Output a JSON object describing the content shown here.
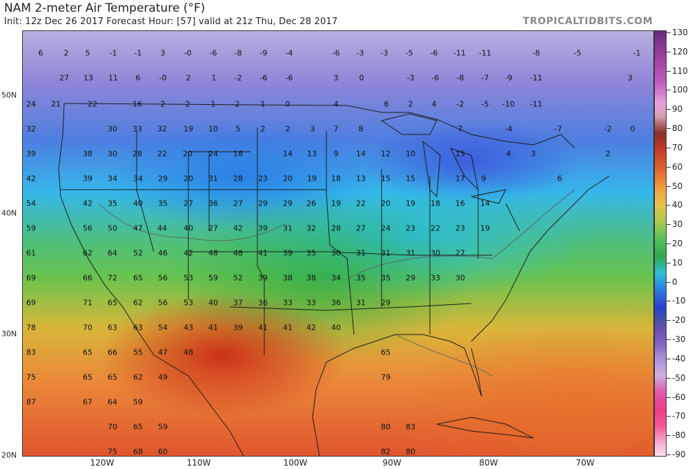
{
  "header": {
    "title": "NAM 2-meter Air Temperature (°F)",
    "subtitle": "Init: 12z Dec 26 2017   Forecast Hour: [57]   valid at 21z Thu, Dec 28 2017",
    "brand": "TROPICALTIDBITS.COM"
  },
  "lat_labels": [
    "50N",
    "40N",
    "30N",
    "20N"
  ],
  "lon_labels": [
    "120W",
    "110W",
    "100W",
    "90W",
    "80W",
    "70W"
  ],
  "colorbar": {
    "labels": [
      "130",
      "120",
      "110",
      "100",
      "90",
      "80",
      "70",
      "60",
      "50",
      "40",
      "30",
      "20",
      "10",
      "0",
      "-10",
      "-20",
      "-30",
      "-40",
      "-50",
      "-60",
      "-70",
      "-80",
      "-90"
    ],
    "colors": {
      "warm": "#c73a2b",
      "mild": "#2ea84a",
      "cold": "#2a3fd0",
      "frigid": "#7e5cc0"
    }
  },
  "station_values": [
    "6",
    "2",
    "5",
    "-1",
    "-1",
    "3",
    "-0",
    "-6",
    "-8",
    "-9",
    "-4",
    "-6",
    "-3",
    "-3",
    "-5",
    "-6",
    "-11",
    "-11",
    "-8",
    "-5",
    "-1",
    "27",
    "13",
    "11",
    "6",
    "-0",
    "2",
    "1",
    "-2",
    "-6",
    "-6",
    "3",
    "0",
    "-3",
    "-6",
    "-8",
    "-7",
    "-9",
    "-11",
    "3",
    "2",
    "24",
    "21",
    "22",
    "16",
    "2",
    "2",
    "1",
    "2",
    "1",
    "0",
    "4",
    "6",
    "2",
    "4",
    "-2",
    "-5",
    "-10",
    "-11",
    "32",
    "30",
    "33",
    "32",
    "19",
    "10",
    "5",
    "2",
    "2",
    "3",
    "7",
    "8",
    "7",
    "-4",
    "-7",
    "-2",
    "0",
    "39",
    "38",
    "30",
    "28",
    "22",
    "20",
    "24",
    "18",
    "14",
    "13",
    "9",
    "14",
    "12",
    "10",
    "15",
    "4",
    "3",
    "2",
    "42",
    "39",
    "34",
    "34",
    "29",
    "20",
    "31",
    "28",
    "23",
    "20",
    "19",
    "18",
    "13",
    "15",
    "15",
    "17",
    "9",
    "6",
    "54",
    "42",
    "35",
    "40",
    "35",
    "27",
    "36",
    "27",
    "29",
    "29",
    "26",
    "19",
    "22",
    "20",
    "19",
    "18",
    "16",
    "14",
    "59",
    "56",
    "50",
    "47",
    "44",
    "40",
    "27",
    "42",
    "39",
    "31",
    "32",
    "28",
    "27",
    "24",
    "23",
    "22",
    "23",
    "19",
    "61",
    "62",
    "64",
    "52",
    "46",
    "42",
    "48",
    "48",
    "41",
    "39",
    "35",
    "30",
    "31",
    "31",
    "31",
    "30",
    "27",
    "69",
    "66",
    "72",
    "65",
    "56",
    "53",
    "59",
    "52",
    "39",
    "38",
    "38",
    "34",
    "35",
    "35",
    "29",
    "33",
    "30",
    "69",
    "71",
    "65",
    "62",
    "56",
    "53",
    "40",
    "37",
    "36",
    "33",
    "33",
    "36",
    "31",
    "29",
    "78",
    "70",
    "63",
    "63",
    "54",
    "43",
    "41",
    "39",
    "41",
    "41",
    "42",
    "40",
    "83",
    "65",
    "66",
    "55",
    "47",
    "48",
    "65",
    "75",
    "65",
    "65",
    "62",
    "49",
    "79",
    "87",
    "67",
    "64",
    "59",
    "70",
    "65",
    "59",
    "80",
    "83",
    "75",
    "68",
    "60",
    "82",
    "80"
  ]
}
